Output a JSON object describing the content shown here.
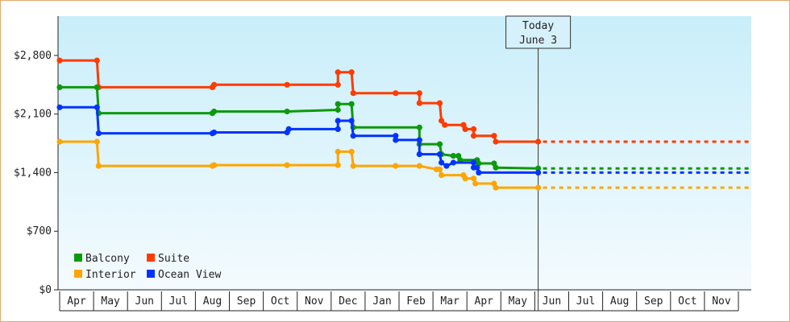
{
  "chart_data": {
    "type": "line",
    "title": "",
    "xlabel": "",
    "ylabel": "",
    "step": true,
    "grid": false,
    "legend_position": "bottom-left",
    "y_ticks": [
      "$0",
      "$700",
      "$1,400",
      "$2,100",
      "$2,800"
    ],
    "y_tick_values": [
      0,
      700,
      1400,
      2100,
      2800
    ],
    "ylim": [
      0,
      3270
    ],
    "x_ticks": [
      "Apr",
      "May",
      "Jun",
      "Jul",
      "Aug",
      "Sep",
      "Oct",
      "Nov",
      "Dec",
      "Jan",
      "Feb",
      "Mar",
      "Apr",
      "May",
      "Jun",
      "Jul",
      "Aug",
      "Sep",
      "Oct",
      "Nov"
    ],
    "x_range_months": [
      0,
      20
    ],
    "today": {
      "line1": "Today",
      "line2": "June 3",
      "x": 14.1
    },
    "series": [
      {
        "name": "Suite",
        "color": "#ff3b00",
        "points": [
          [
            0,
            2740
          ],
          [
            1.1,
            2740
          ],
          [
            1.15,
            2420
          ],
          [
            4.5,
            2420
          ],
          [
            4.55,
            2450
          ],
          [
            6.7,
            2450
          ],
          [
            8.2,
            2450
          ],
          [
            8.2,
            2600
          ],
          [
            8.6,
            2600
          ],
          [
            8.65,
            2350
          ],
          [
            9.9,
            2350
          ],
          [
            10.6,
            2350
          ],
          [
            10.6,
            2230
          ],
          [
            11.2,
            2230
          ],
          [
            11.25,
            2020
          ],
          [
            11.35,
            1970
          ],
          [
            11.9,
            1970
          ],
          [
            11.95,
            1920
          ],
          [
            12.2,
            1920
          ],
          [
            12.2,
            1840
          ],
          [
            12.8,
            1840
          ],
          [
            12.85,
            1770
          ],
          [
            14.1,
            1770
          ]
        ],
        "forecast": 1770
      },
      {
        "name": "Balcony",
        "color": "#0b9a0b",
        "points": [
          [
            0,
            2420
          ],
          [
            1.1,
            2420
          ],
          [
            1.15,
            2110
          ],
          [
            4.5,
            2110
          ],
          [
            4.55,
            2130
          ],
          [
            6.7,
            2130
          ],
          [
            8.2,
            2150
          ],
          [
            8.2,
            2220
          ],
          [
            8.6,
            2220
          ],
          [
            8.65,
            1940
          ],
          [
            10.6,
            1940
          ],
          [
            10.6,
            1740
          ],
          [
            11.2,
            1740
          ],
          [
            11.25,
            1620
          ],
          [
            11.6,
            1600
          ],
          [
            11.75,
            1600
          ],
          [
            11.8,
            1550
          ],
          [
            12.3,
            1550
          ],
          [
            12.35,
            1510
          ],
          [
            12.8,
            1510
          ],
          [
            12.85,
            1460
          ],
          [
            14.1,
            1450
          ]
        ],
        "forecast": 1450
      },
      {
        "name": "Ocean View",
        "color": "#0033ff",
        "points": [
          [
            0,
            2180
          ],
          [
            1.1,
            2180
          ],
          [
            1.15,
            1870
          ],
          [
            4.5,
            1870
          ],
          [
            4.55,
            1880
          ],
          [
            6.7,
            1880
          ],
          [
            6.75,
            1920
          ],
          [
            8.2,
            1920
          ],
          [
            8.2,
            2020
          ],
          [
            8.6,
            2020
          ],
          [
            8.65,
            1840
          ],
          [
            9.9,
            1840
          ],
          [
            9.9,
            1790
          ],
          [
            10.6,
            1790
          ],
          [
            10.6,
            1620
          ],
          [
            11.2,
            1620
          ],
          [
            11.25,
            1520
          ],
          [
            11.4,
            1480
          ],
          [
            11.6,
            1520
          ],
          [
            12.2,
            1520
          ],
          [
            12.2,
            1460
          ],
          [
            12.3,
            1460
          ],
          [
            12.35,
            1400
          ],
          [
            14.1,
            1400
          ]
        ],
        "forecast": 1400
      },
      {
        "name": "Interior",
        "color": "#ffa500",
        "points": [
          [
            0,
            1770
          ],
          [
            1.1,
            1770
          ],
          [
            1.15,
            1480
          ],
          [
            4.5,
            1480
          ],
          [
            4.55,
            1490
          ],
          [
            6.7,
            1490
          ],
          [
            8.2,
            1490
          ],
          [
            8.2,
            1650
          ],
          [
            8.6,
            1650
          ],
          [
            8.65,
            1480
          ],
          [
            9.9,
            1480
          ],
          [
            10.6,
            1480
          ],
          [
            11.1,
            1440
          ],
          [
            11.2,
            1440
          ],
          [
            11.25,
            1370
          ],
          [
            11.9,
            1370
          ],
          [
            11.95,
            1330
          ],
          [
            12.2,
            1330
          ],
          [
            12.25,
            1270
          ],
          [
            12.8,
            1270
          ],
          [
            12.85,
            1220
          ],
          [
            14.1,
            1220
          ]
        ],
        "forecast": 1220
      }
    ],
    "legend": [
      {
        "name": "Balcony",
        "color": "#0b9a0b"
      },
      {
        "name": "Suite",
        "color": "#ff3b00"
      },
      {
        "name": "Interior",
        "color": "#ffa500"
      },
      {
        "name": "Ocean View",
        "color": "#0033ff"
      }
    ]
  }
}
